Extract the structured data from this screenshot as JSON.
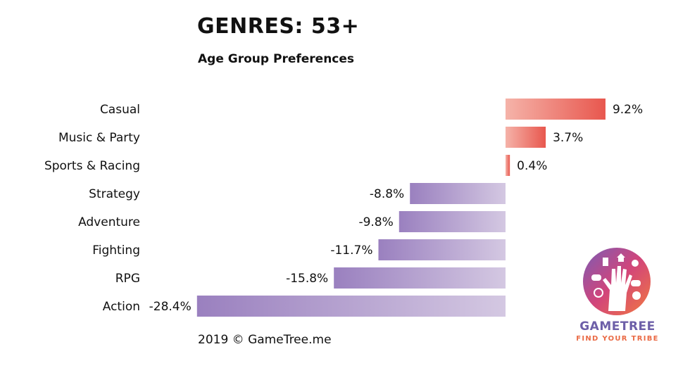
{
  "chart_data": {
    "type": "bar",
    "orientation": "horizontal",
    "title": "GENRES: 53+",
    "subtitle": "Age Group Preferences",
    "categories": [
      "Casual",
      "Music & Party",
      "Sports & Racing",
      "Strategy",
      "Adventure",
      "Fighting",
      "RPG",
      "Action"
    ],
    "values": [
      9.2,
      3.7,
      0.4,
      -8.8,
      -9.8,
      -11.7,
      -15.8,
      -28.4
    ],
    "value_labels": [
      "9.2%",
      "3.7%",
      "0.4%",
      "-8.8%",
      "-9.8%",
      "-11.7%",
      "-15.8%",
      "-28.4%"
    ],
    "xlim": [
      -28.4,
      9.2
    ],
    "grid": false,
    "colors": {
      "positive_light": "#f5b3a9",
      "positive_dark": "#e8574e",
      "negative_light": "#d4c8e2",
      "negative_dark": "#9a80bf"
    }
  },
  "footer": "2019 © GameTree.me",
  "logo": {
    "name": "GAMETREE",
    "tagline": "FIND YOUR TRIBE",
    "icon": "gametree-hand-icon"
  }
}
